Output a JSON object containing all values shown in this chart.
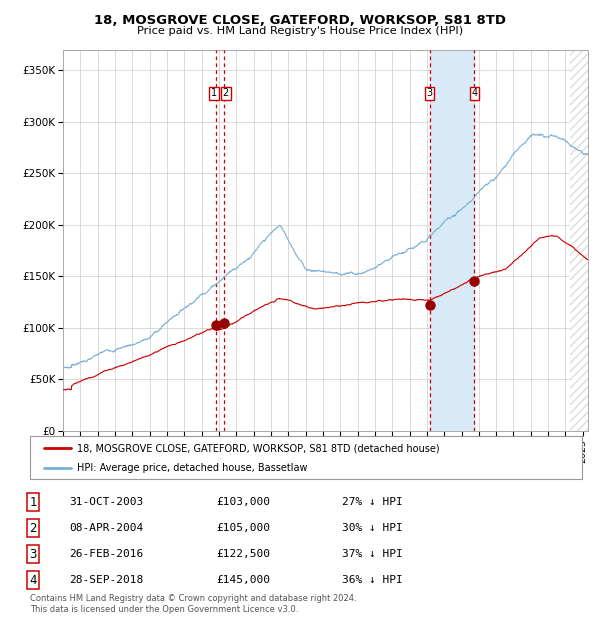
{
  "title": "18, MOSGROVE CLOSE, GATEFORD, WORKSOP, S81 8TD",
  "subtitle": "Price paid vs. HM Land Registry's House Price Index (HPI)",
  "legend_red": "18, MOSGROVE CLOSE, GATEFORD, WORKSOP, S81 8TD (detached house)",
  "legend_blue": "HPI: Average price, detached house, Bassetlaw",
  "footer1": "Contains HM Land Registry data © Crown copyright and database right 2024.",
  "footer2": "This data is licensed under the Open Government Licence v3.0.",
  "transactions": [
    {
      "num": "1",
      "date": "31-OCT-2003",
      "price": "£103,000",
      "pct": "27% ↓ HPI",
      "date_dec": 2003.833,
      "price_val": 103000
    },
    {
      "num": "2",
      "date": "08-APR-2004",
      "price": "£105,000",
      "pct": "30% ↓ HPI",
      "date_dec": 2004.274,
      "price_val": 105000
    },
    {
      "num": "3",
      "date": "26-FEB-2016",
      "price": "£122,500",
      "pct": "37% ↓ HPI",
      "date_dec": 2016.153,
      "price_val": 122500
    },
    {
      "num": "4",
      "date": "28-SEP-2018",
      "price": "£145,000",
      "pct": "36% ↓ HPI",
      "date_dec": 2018.742,
      "price_val": 145000
    }
  ],
  "ylim": [
    0,
    370000
  ],
  "xlim_start": 1995.0,
  "xlim_end": 2025.3,
  "hatch_start": 2024.25,
  "shade_start": 2016.153,
  "shade_end": 2018.742,
  "red_color": "#cc0000",
  "blue_color": "#7ab0d4",
  "shade_color": "#d8eaf7",
  "yticks": [
    0,
    50000,
    100000,
    150000,
    200000,
    250000,
    300000,
    350000
  ],
  "ylabels": [
    "£0",
    "£50K",
    "£100K",
    "£150K",
    "£200K",
    "£250K",
    "£300K",
    "£350K"
  ]
}
